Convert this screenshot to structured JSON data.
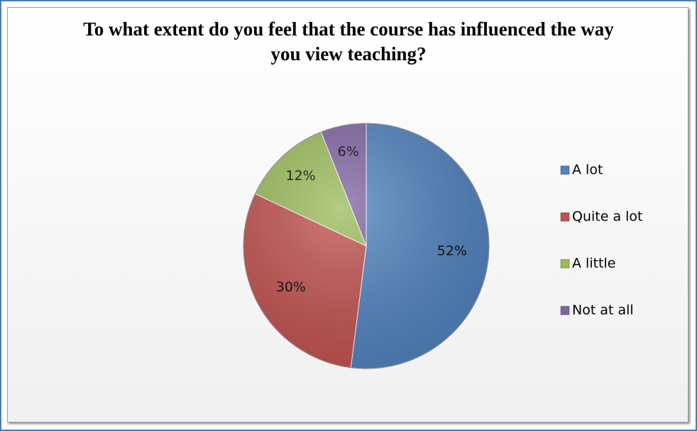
{
  "chart_data": {
    "type": "pie",
    "title": "To what extent do you feel that the course has influenced the way you view teaching?",
    "categories": [
      "A lot",
      "Quite a lot",
      "A little",
      "Not at all"
    ],
    "values": [
      52,
      30,
      12,
      6
    ],
    "value_labels": [
      "52%",
      "30%",
      "12%",
      "6%"
    ],
    "colors": [
      "#4f81bd",
      "#c0504d",
      "#9bbb59",
      "#8064a2"
    ],
    "legend": "right"
  }
}
